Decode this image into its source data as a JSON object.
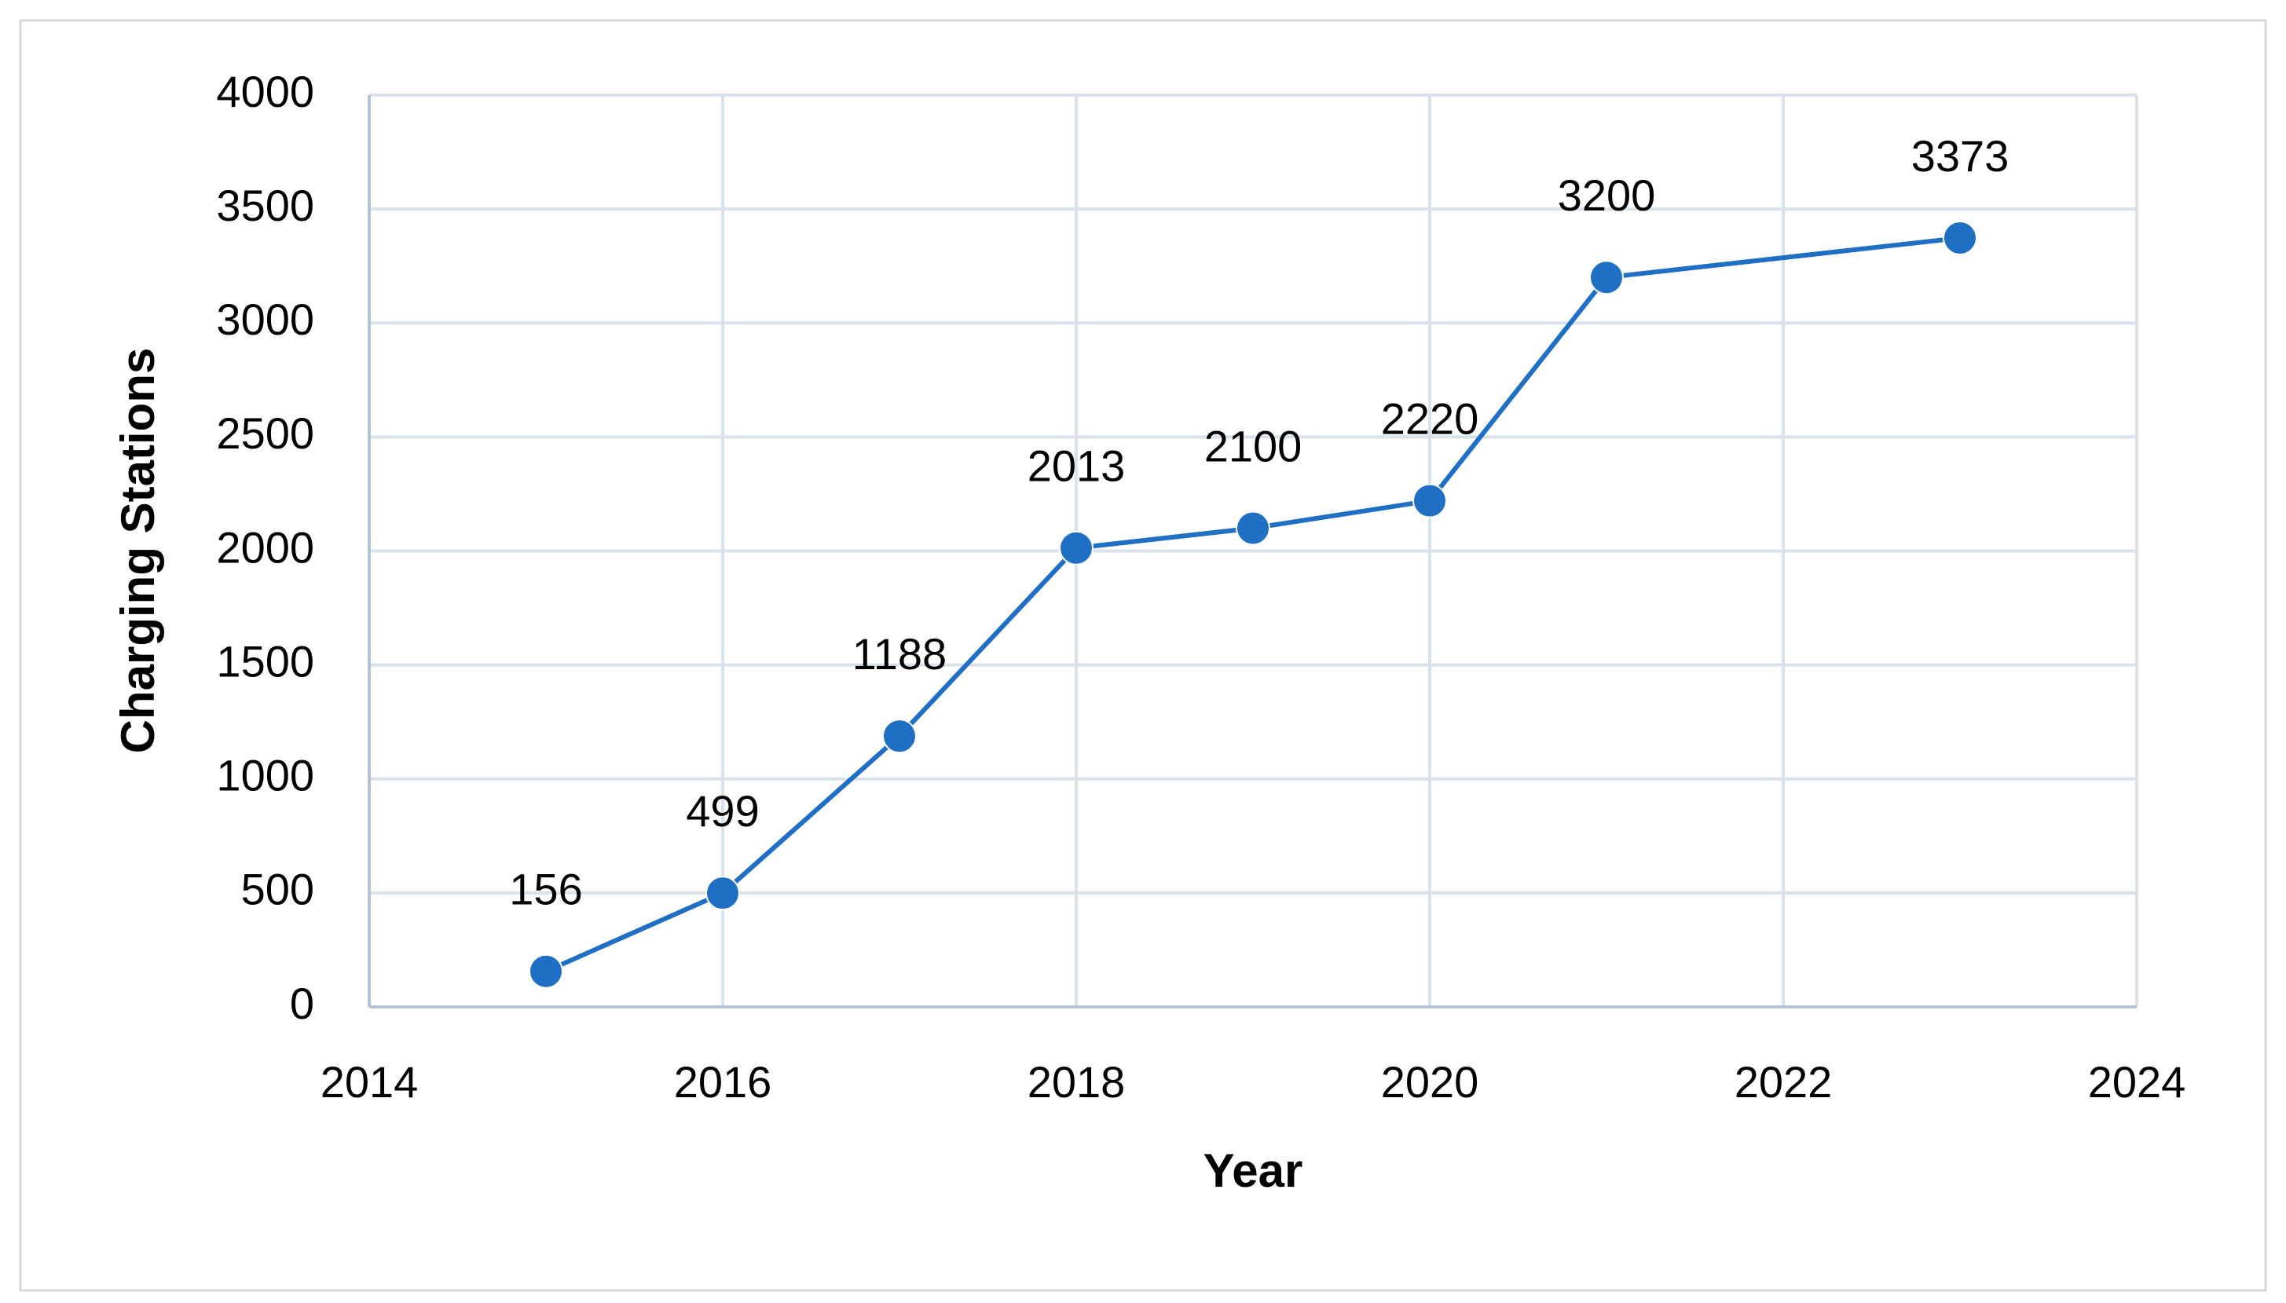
{
  "chart_data": {
    "type": "line",
    "x_label": "Year",
    "y_label": "Charging Stations",
    "x": [
      2015,
      2016,
      2017,
      2018,
      2019,
      2020,
      2021,
      2023
    ],
    "series": [
      {
        "name": "Charging Stations",
        "color": "#1f6fc5",
        "values": [
          156,
          499,
          1188,
          2013,
          2100,
          2220,
          3200,
          3373
        ]
      }
    ],
    "xlim": [
      2014,
      2024
    ],
    "xticks": [
      2014,
      2016,
      2018,
      2020,
      2022,
      2024
    ],
    "ylim": [
      0,
      4000
    ],
    "yticks": [
      0,
      500,
      1000,
      1500,
      2000,
      2500,
      3000,
      3500,
      4000
    ],
    "grid": true,
    "data_labels": true
  }
}
